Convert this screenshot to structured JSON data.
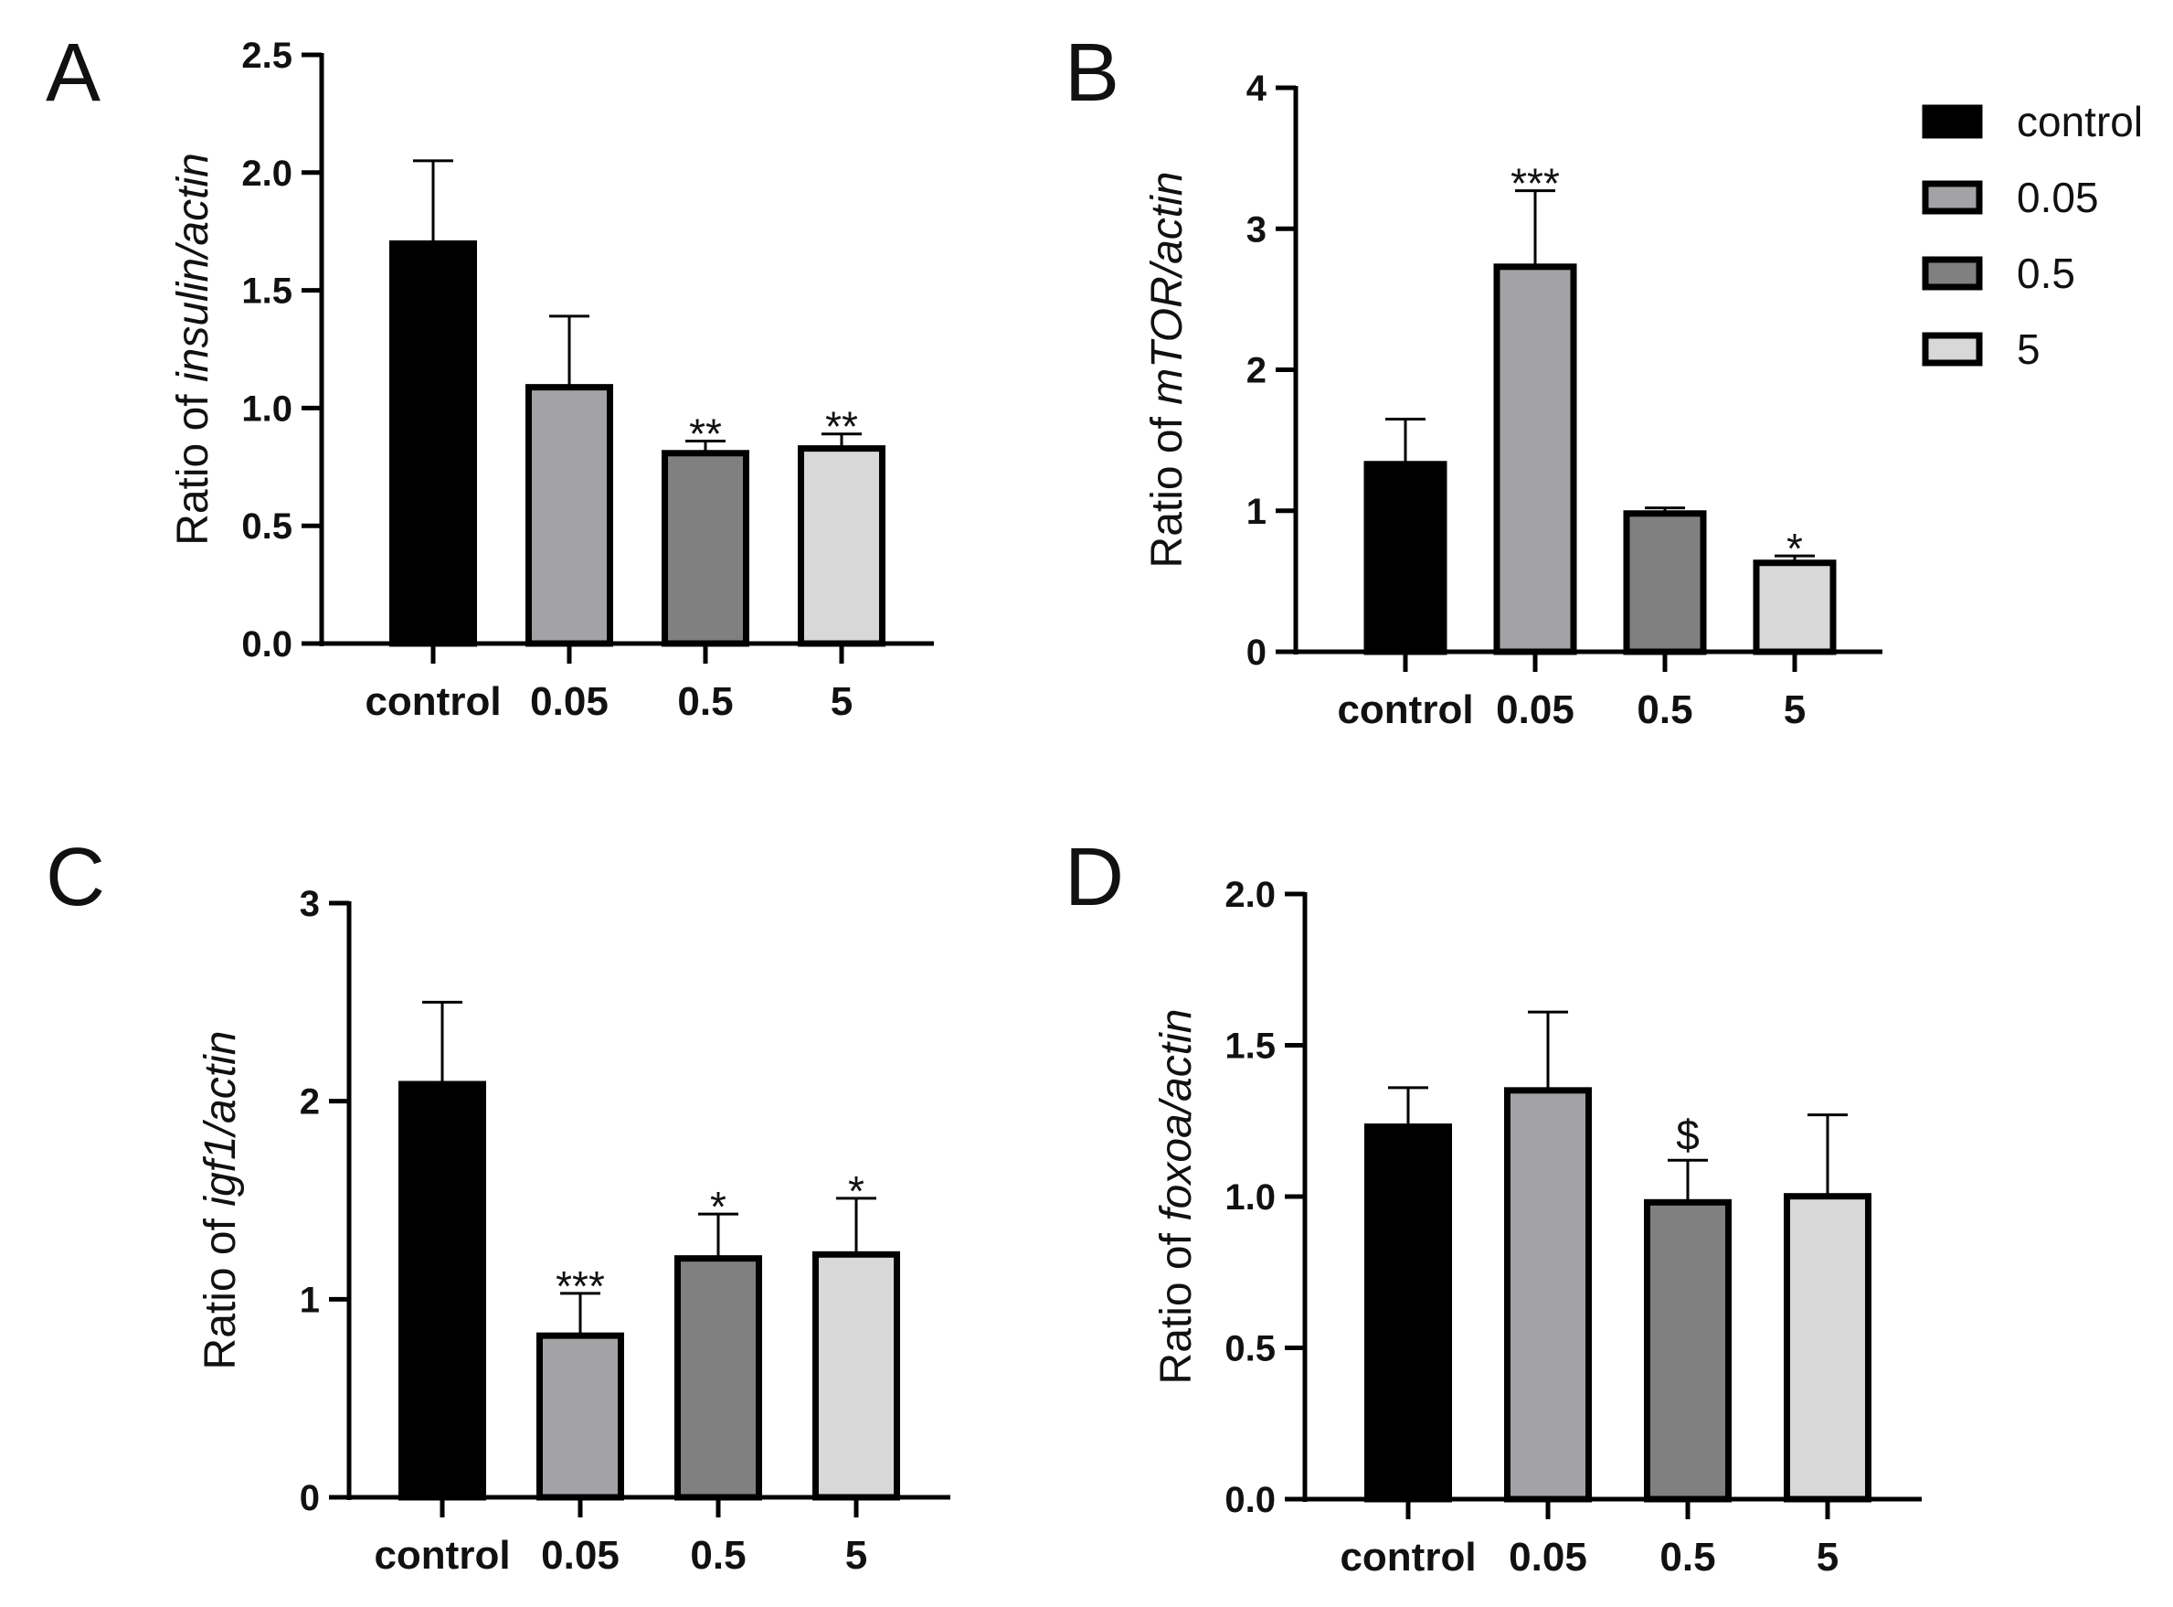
{
  "figure": {
    "legend": {
      "entries": [
        {
          "label": "control",
          "color": "#000000"
        },
        {
          "label": "0.05",
          "color": "#a3a3a6"
        },
        {
          "label": "0.5",
          "color": "#808080"
        },
        {
          "label": "5",
          "color": "#d8d8d8"
        }
      ]
    }
  },
  "chart_data": [
    {
      "id": "A",
      "type": "bar",
      "panel_label": "A",
      "categories": [
        "control",
        "0.05",
        "0.5",
        "5"
      ],
      "values": [
        1.71,
        1.1,
        0.82,
        0.84
      ],
      "errors": [
        0.34,
        0.29,
        0.04,
        0.05
      ],
      "annotations": [
        "",
        "",
        "**",
        "**"
      ],
      "ylabel_prefix": "Ratio of ",
      "ylabel_italic": "insulin/actin",
      "ylim": [
        0,
        2.5
      ],
      "yticks": [
        0,
        0.5,
        1.0,
        1.5,
        2.0,
        2.5
      ],
      "ytick_labels": [
        "0.0",
        "0.5",
        "1.0",
        "1.5",
        "2.0",
        "2.5"
      ]
    },
    {
      "id": "B",
      "type": "bar",
      "panel_label": "B",
      "categories": [
        "control",
        "0.05",
        "0.5",
        "5"
      ],
      "values": [
        1.35,
        2.75,
        1.0,
        0.65
      ],
      "errors": [
        0.3,
        0.52,
        0.02,
        0.03
      ],
      "annotations": [
        "",
        "***",
        "",
        "*"
      ],
      "ylabel_prefix": "Ratio of ",
      "ylabel_italic": "mTOR/actin",
      "ylim": [
        0,
        4
      ],
      "yticks": [
        0,
        1,
        2,
        3,
        4
      ],
      "ytick_labels": [
        "0",
        "1",
        "2",
        "3",
        "4"
      ]
    },
    {
      "id": "C",
      "type": "bar",
      "panel_label": "C",
      "categories": [
        "control",
        "0.05",
        "0.5",
        "5"
      ],
      "values": [
        2.1,
        0.83,
        1.22,
        1.24
      ],
      "errors": [
        0.4,
        0.2,
        0.21,
        0.27
      ],
      "annotations": [
        "",
        "***",
        "*",
        "*"
      ],
      "ylabel_prefix": "Ratio of ",
      "ylabel_italic": "igf1/actin",
      "ylim": [
        0,
        3
      ],
      "yticks": [
        0,
        1,
        2,
        3
      ],
      "ytick_labels": [
        "0",
        "1",
        "2",
        "3"
      ]
    },
    {
      "id": "D",
      "type": "bar",
      "panel_label": "D",
      "categories": [
        "control",
        "0.05",
        "0.5",
        "5"
      ],
      "values": [
        1.24,
        1.36,
        0.99,
        1.01
      ],
      "errors": [
        0.12,
        0.25,
        0.13,
        0.26
      ],
      "annotations": [
        "",
        "",
        "$",
        ""
      ],
      "ylabel_prefix": "Ratio of ",
      "ylabel_italic": "foxoa/actin",
      "ylim": [
        0,
        2.0
      ],
      "yticks": [
        0,
        0.5,
        1.0,
        1.5,
        2.0
      ],
      "ytick_labels": [
        "0.0",
        "0.5",
        "1.0",
        "1.5",
        "2.0"
      ]
    }
  ]
}
